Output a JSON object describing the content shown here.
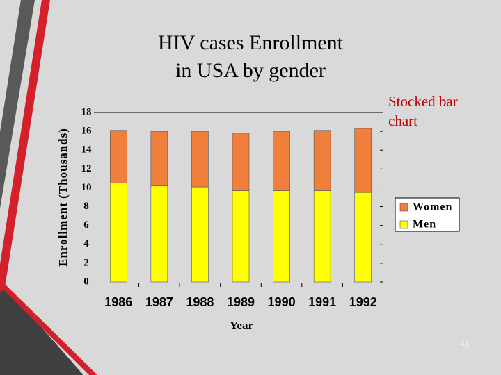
{
  "chart_data": {
    "type": "stacked_bar",
    "title": "HIV cases  Enrollment",
    "subtitle": "in USA  by gender",
    "annotation": "Stocked bar chart",
    "y_label": "Enrollment (Thousands)",
    "x_label": "Year",
    "categories": [
      "1986",
      "1987",
      "1988",
      "1989",
      "1990",
      "1991",
      "1992"
    ],
    "series": [
      {
        "name": "Men",
        "color": "#ffff00",
        "values": [
          10.5,
          10.2,
          10.1,
          9.7,
          9.7,
          9.7,
          9.5
        ]
      },
      {
        "name": "Women",
        "color": "#f07f3c",
        "values": [
          5.6,
          5.8,
          5.9,
          6.1,
          6.3,
          6.4,
          6.8
        ]
      }
    ],
    "ylim": [
      0,
      18
    ],
    "yticks": [
      0,
      2,
      4,
      6,
      8,
      10,
      12,
      14,
      16,
      18
    ],
    "legend": "right"
  },
  "page_number": "41"
}
